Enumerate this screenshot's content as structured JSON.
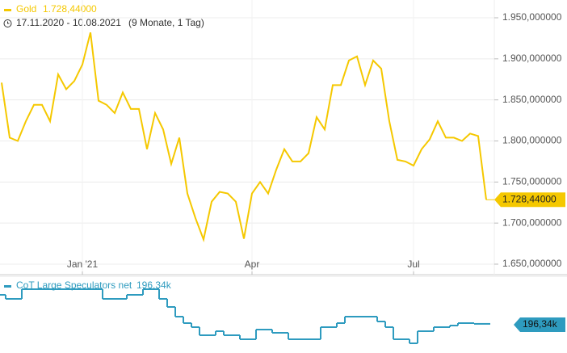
{
  "chart_data": [
    {
      "type": "line",
      "date_range": "17.11.2020 - 10.08.2021",
      "duration": "(9 Monate, 1 Tag)",
      "categories": [
        null,
        null,
        null,
        null,
        null,
        null,
        null,
        null,
        null,
        null,
        "Jan '21",
        null,
        null,
        null,
        null,
        null,
        null,
        null,
        null,
        null,
        null,
        null,
        null,
        null,
        null,
        null,
        null,
        null,
        null,
        null,
        null,
        "Apr",
        null,
        null,
        null,
        null,
        null,
        null,
        null,
        null,
        null,
        null,
        null,
        null,
        null,
        null,
        null,
        null,
        null,
        null,
        null,
        "Jul",
        null,
        null,
        null,
        null,
        null,
        null,
        null,
        null,
        null
      ],
      "series": [
        {
          "name": "Gold",
          "color": "#f5c800",
          "values": [
            1871,
            1804,
            1800,
            1824,
            1844,
            1844,
            1824,
            1881,
            1863,
            1873,
            1893,
            1932,
            1849,
            1844,
            1834,
            1859,
            1839,
            1839,
            1790,
            1834,
            1814,
            1772,
            1804,
            1736,
            1706,
            1680,
            1726,
            1738,
            1736,
            1726,
            1681,
            1736,
            1750,
            1736,
            1765,
            1790,
            1775,
            1775,
            1785,
            1829,
            1814,
            1868,
            1868,
            1898,
            1903,
            1868,
            1898,
            1888,
            1824,
            1777,
            1775,
            1770,
            1790,
            1802,
            1824,
            1804,
            1804,
            1800,
            1809,
            1806,
            1728.44
          ],
          "value_labels": [
            null,
            null,
            null,
            null,
            null,
            null,
            null,
            null,
            null,
            null,
            null,
            null,
            null,
            null,
            null,
            null,
            null,
            null,
            null,
            null,
            null,
            null,
            null,
            null,
            null,
            null,
            null,
            null,
            null,
            null,
            null,
            null,
            null,
            null,
            null,
            null,
            null,
            null,
            null,
            null,
            null,
            null,
            null,
            null,
            null,
            null,
            null,
            null,
            null,
            null,
            null,
            null,
            null,
            null,
            null,
            null,
            null,
            null,
            null,
            null,
            "1.728,44000"
          ]
        }
      ],
      "ylim": [
        1650,
        1950
      ],
      "yticks": [
        {
          "value": 1650,
          "label": "1.650,000000"
        },
        {
          "value": 1700,
          "label": "1.700,000000"
        },
        {
          "value": 1750,
          "label": "1.750,000000"
        },
        {
          "value": 1800,
          "label": "1.800,000000"
        },
        {
          "value": 1850,
          "label": "1.850,000000"
        },
        {
          "value": 1900,
          "label": "1.900,000000"
        },
        {
          "value": 1950,
          "label": "1.950,000000"
        }
      ],
      "grid": true
    },
    {
      "type": "step",
      "series": [
        {
          "name": "CoT Large Speculators net",
          "color": "#2e9bbf",
          "values": [
            376,
            351,
            351,
            411,
            411,
            411,
            411,
            411,
            411,
            411,
            411,
            411,
            411,
            351,
            351,
            351,
            376,
            376,
            411,
            411,
            351,
            301,
            241,
            201,
            176,
            126,
            126,
            151,
            126,
            126,
            101,
            101,
            161,
            161,
            141,
            141,
            101,
            101,
            101,
            101,
            176,
            176,
            201,
            241,
            241,
            241,
            241,
            211,
            176,
            101,
            101,
            76,
            151,
            151,
            176,
            176,
            186,
            201,
            201,
            196.34,
            196.34
          ],
          "value_labels": [
            null,
            null,
            null,
            null,
            null,
            null,
            null,
            null,
            null,
            null,
            null,
            null,
            null,
            null,
            null,
            null,
            null,
            null,
            null,
            null,
            null,
            null,
            null,
            null,
            null,
            null,
            null,
            null,
            null,
            null,
            null,
            null,
            null,
            null,
            null,
            null,
            null,
            null,
            null,
            null,
            null,
            null,
            null,
            null,
            null,
            null,
            null,
            null,
            null,
            null,
            null,
            null,
            null,
            null,
            null,
            null,
            null,
            null,
            null,
            null,
            "196,34k"
          ]
        }
      ]
    }
  ]
}
